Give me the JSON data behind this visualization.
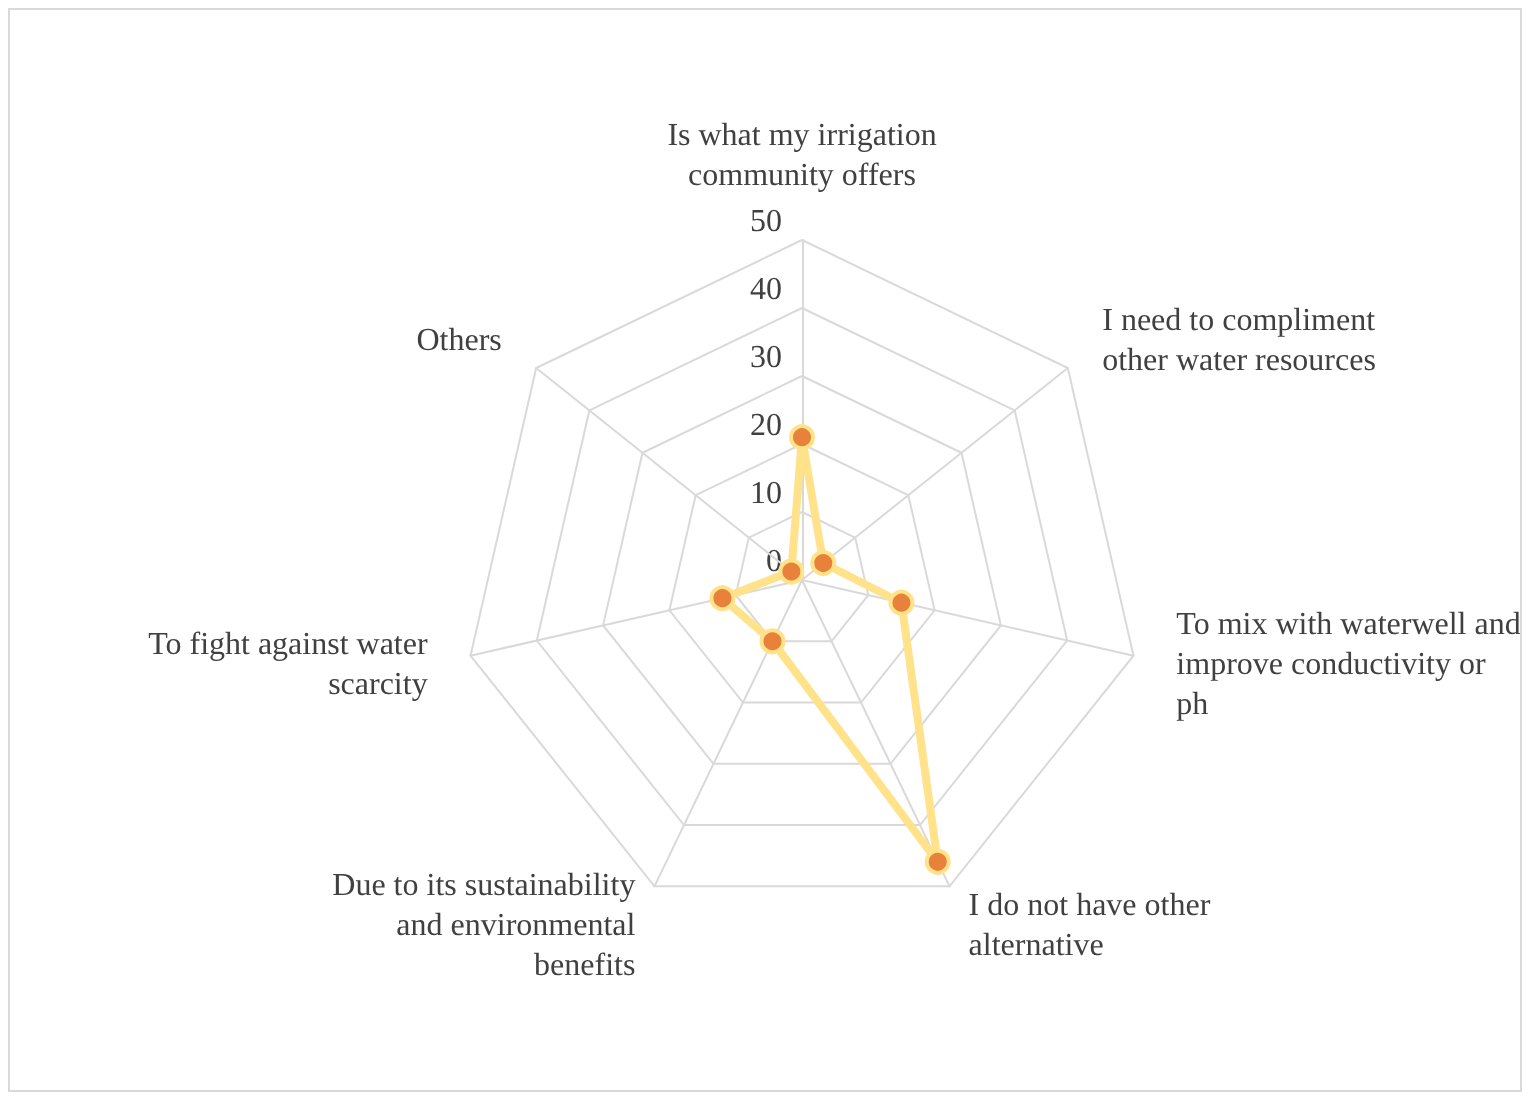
{
  "chart_data": {
    "type": "radar",
    "categories": [
      "Is what my irrigation community offers",
      "I need to compliment other water resources",
      "To mix with waterwell and improve conductivity or ph",
      "I do not have other alternative",
      "Due to its sustainability and environmental benefits",
      "To fight against water scarcity",
      "Others"
    ],
    "series": [
      {
        "color": "#ffe28a",
        "values": [
          21,
          4,
          15,
          46,
          10,
          12,
          2
        ]
      }
    ],
    "ylim": [
      0,
      50
    ],
    "yticks": [
      0,
      10,
      20,
      30,
      40,
      50
    ],
    "marker": "circle",
    "grid": true
  }
}
